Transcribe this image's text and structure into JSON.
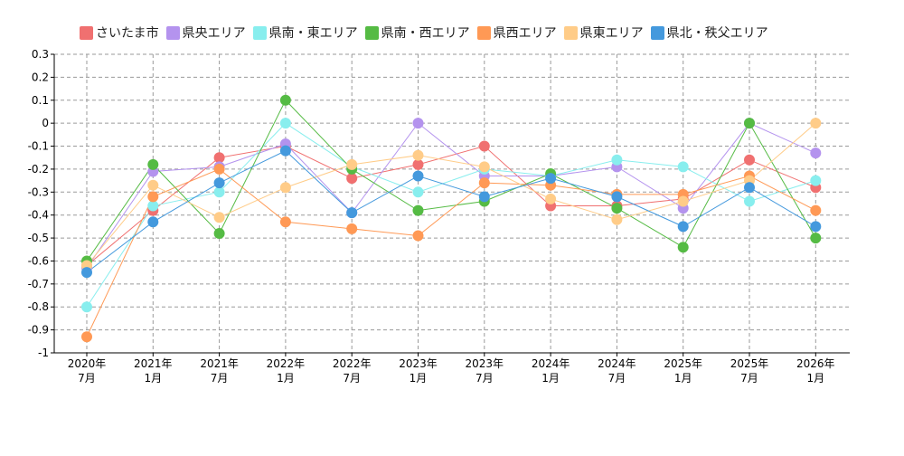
{
  "chart_data": {
    "type": "line",
    "title": "",
    "xlabel": "",
    "ylabel": "",
    "ylim": [
      -1,
      0.3
    ],
    "yticks": [
      0.3,
      0.2,
      0.1,
      0,
      -0.1,
      -0.2,
      -0.3,
      -0.4,
      -0.5,
      -0.6,
      -0.7,
      -0.8,
      -0.9,
      -1
    ],
    "categories": [
      [
        "2020年",
        "7月"
      ],
      [
        "2021年",
        "1月"
      ],
      [
        "2021年",
        "7月"
      ],
      [
        "2022年",
        "1月"
      ],
      [
        "2022年",
        "7月"
      ],
      [
        "2023年",
        "1月"
      ],
      [
        "2023年",
        "7月"
      ],
      [
        "2024年",
        "1月"
      ],
      [
        "2024年",
        "7月"
      ],
      [
        "2025年",
        "1月"
      ],
      [
        "2025年",
        "7月"
      ],
      [
        "2026年",
        "1月"
      ]
    ],
    "series": [
      {
        "name": "さいたま市",
        "color": "#f07070",
        "values": [
          -0.62,
          -0.38,
          -0.15,
          -0.1,
          -0.24,
          -0.18,
          -0.1,
          -0.36,
          -0.36,
          -0.33,
          -0.16,
          -0.28
        ]
      },
      {
        "name": "県央エリア",
        "color": "#b493ee",
        "values": [
          -0.63,
          -0.21,
          -0.19,
          -0.09,
          -0.39,
          0.0,
          -0.23,
          -0.23,
          -0.19,
          -0.37,
          0.0,
          -0.13
        ]
      },
      {
        "name": "県南・東エリア",
        "color": "#88eeee",
        "values": [
          -0.8,
          -0.36,
          -0.3,
          0.0,
          -0.19,
          -0.3,
          -0.2,
          -0.23,
          -0.16,
          -0.19,
          -0.34,
          -0.25
        ]
      },
      {
        "name": "県南・西エリア",
        "color": "#55bb44",
        "values": [
          -0.6,
          -0.18,
          -0.48,
          0.1,
          -0.2,
          -0.38,
          -0.34,
          -0.22,
          -0.37,
          -0.54,
          0.0,
          -0.5
        ]
      },
      {
        "name": "県西エリア",
        "color": "#ff9955",
        "values": [
          -0.93,
          -0.32,
          -0.2,
          -0.43,
          -0.46,
          -0.49,
          -0.26,
          -0.27,
          -0.31,
          -0.31,
          -0.23,
          -0.38
        ]
      },
      {
        "name": "県東エリア",
        "color": "#ffcc88",
        "values": [
          -0.62,
          -0.27,
          -0.41,
          -0.28,
          -0.18,
          -0.14,
          -0.19,
          -0.33,
          -0.42,
          -0.34,
          -0.25,
          0.0
        ]
      },
      {
        "name": "県北・秩父エリア",
        "color": "#4499dd",
        "values": [
          -0.65,
          -0.43,
          -0.26,
          -0.12,
          -0.39,
          -0.23,
          -0.32,
          -0.24,
          -0.32,
          -0.45,
          -0.28,
          -0.45
        ]
      }
    ]
  }
}
